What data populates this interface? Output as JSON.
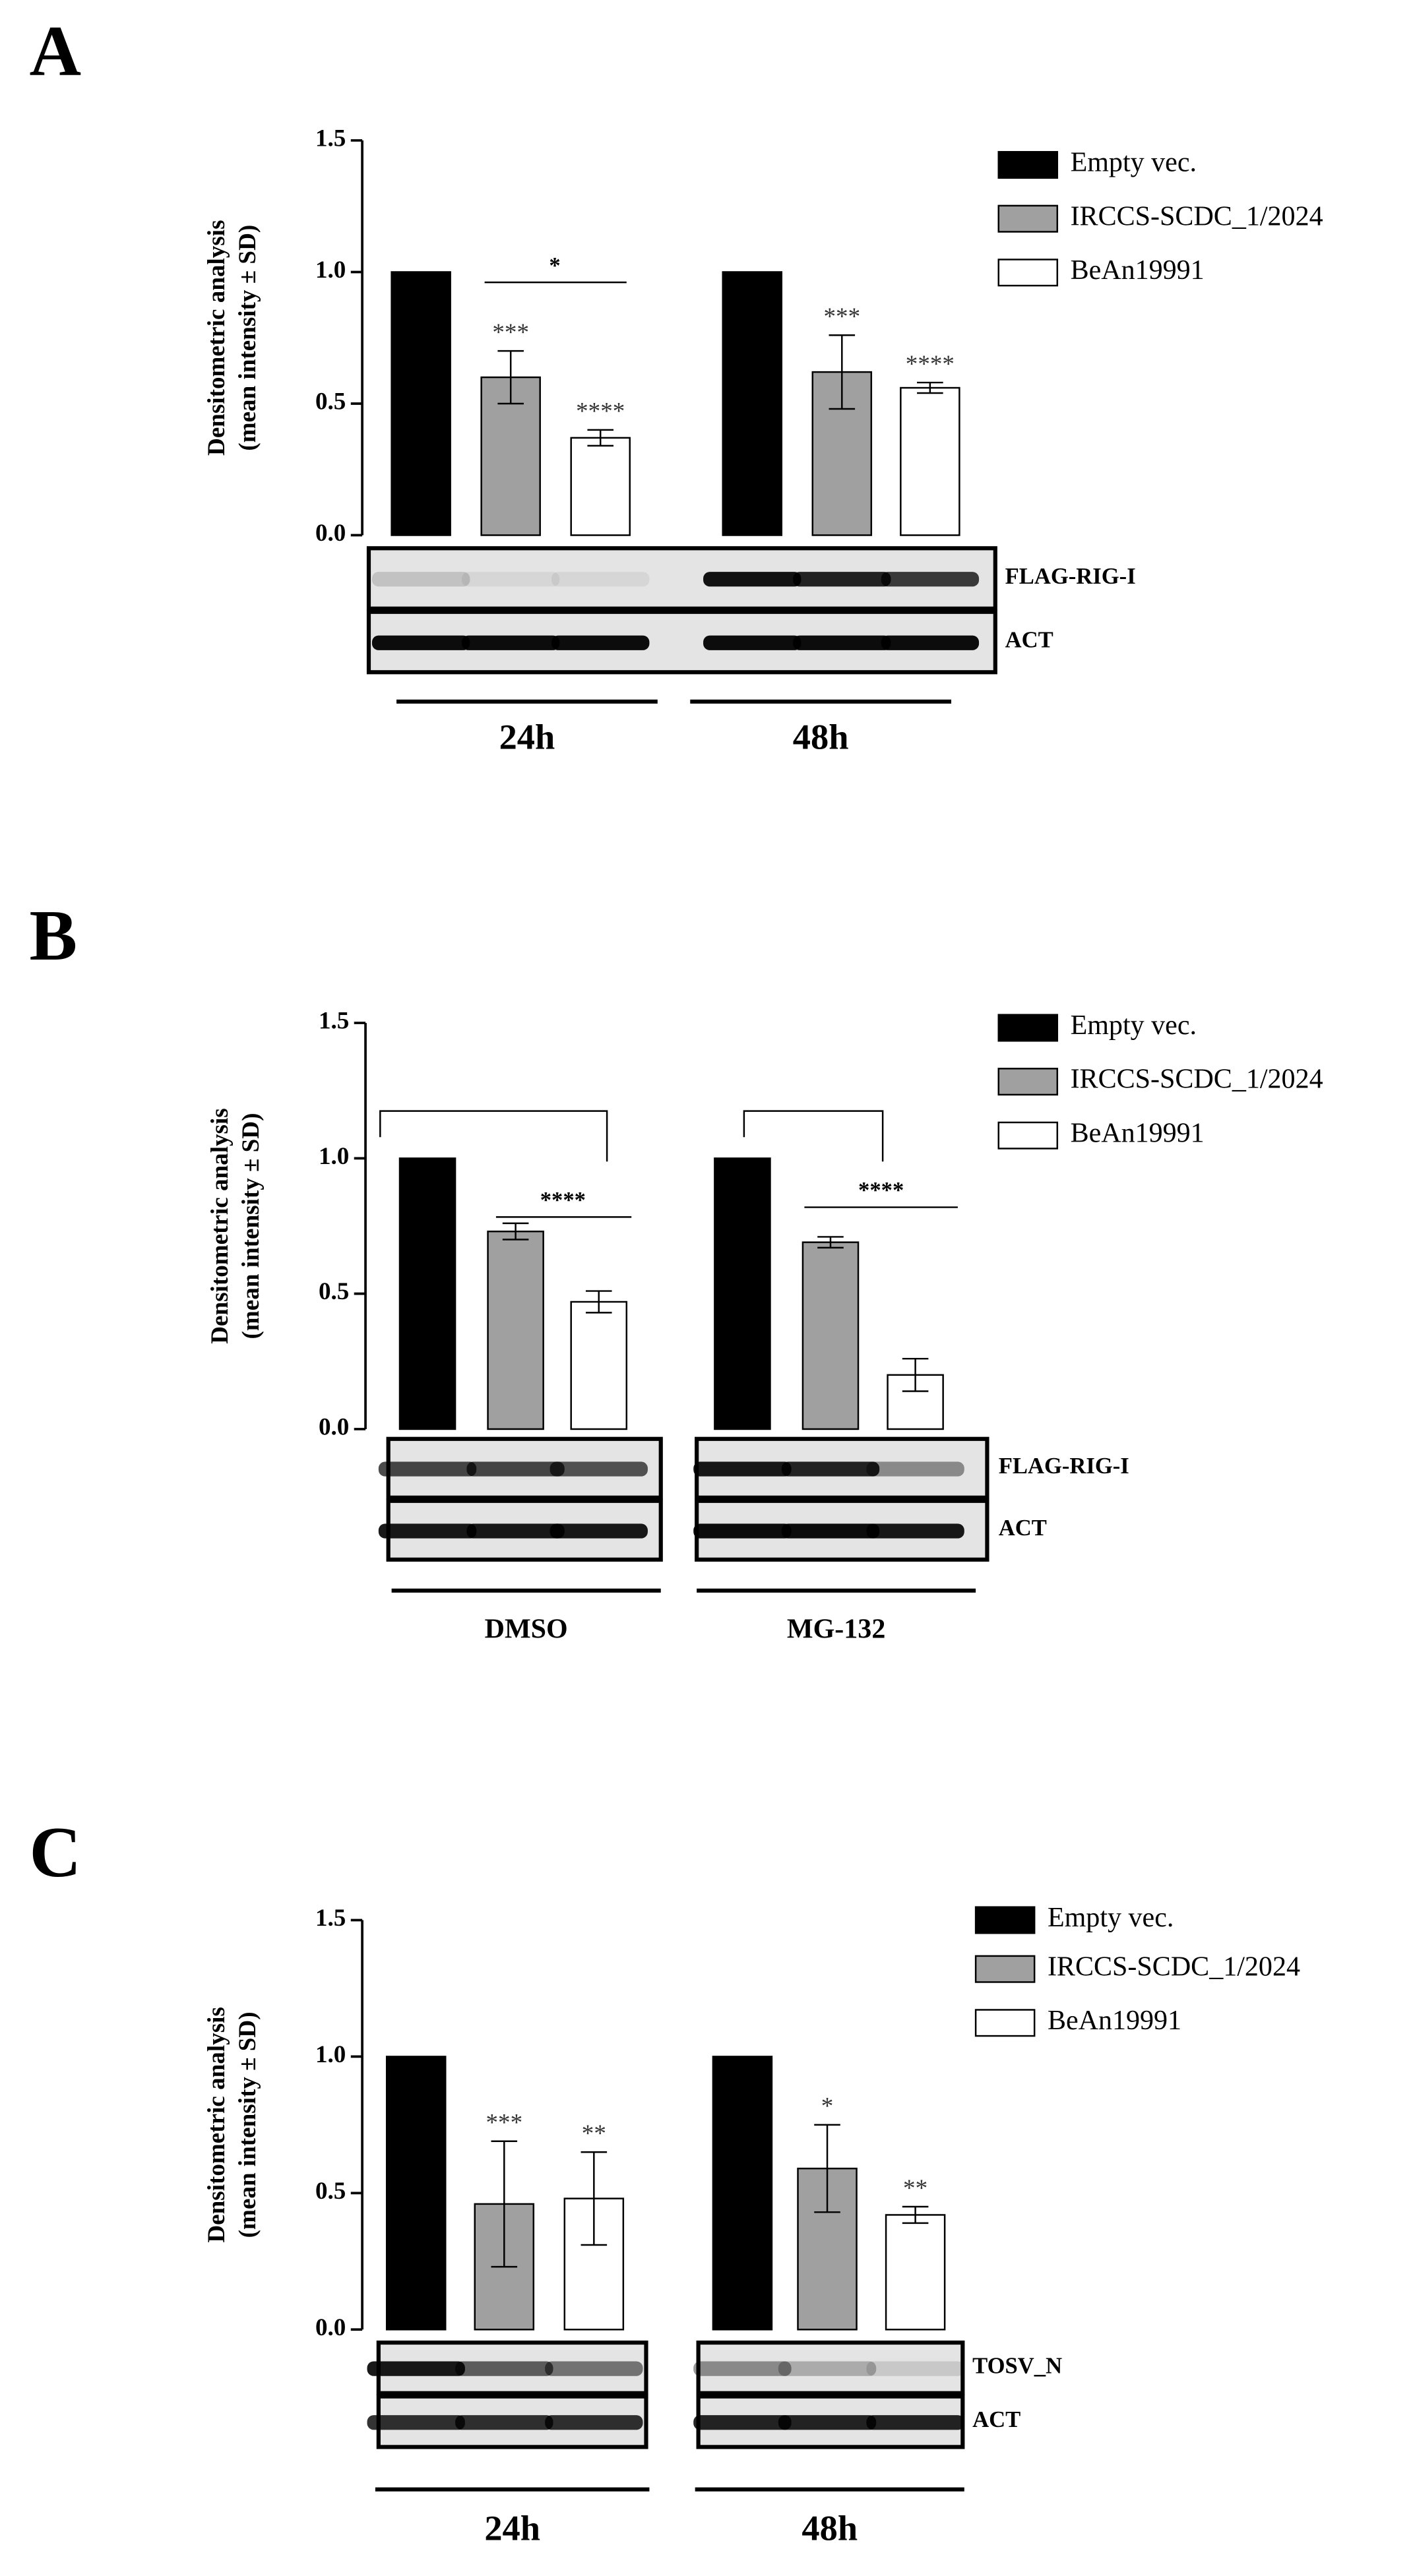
{
  "chart_data": [
    {
      "panel": "A",
      "type": "bar",
      "y_label": [
        "Densitometric analysis",
        "(mean intensity ± SD)"
      ],
      "categories": [
        "24h",
        "48h"
      ],
      "ylim": [
        0,
        1.5
      ],
      "yticks": [
        {
          "value": 0,
          "label": "0.0"
        },
        {
          "value": 0.5,
          "label": "0.5"
        },
        {
          "value": 1,
          "label": "1.0"
        },
        {
          "value": 1.5,
          "label": "1.5"
        }
      ],
      "series": [
        {
          "name": "Empty vec.",
          "color": "#000000",
          "values": [
            1.0,
            1.0
          ]
        },
        {
          "name": "IRCCS-SCDC_1/2024",
          "color": "#a0a0a0",
          "values": [
            0.6,
            0.62
          ],
          "errors": [
            0.1,
            0.14
          ],
          "stars": [
            "***",
            "***"
          ]
        },
        {
          "name": "BeAn19991",
          "color": "#ffffff",
          "values": [
            0.37,
            0.56
          ],
          "errors": [
            0.03,
            0.02
          ],
          "stars": [
            "****",
            "****"
          ]
        }
      ],
      "annotations": [
        "*"
      ],
      "blot_labels": [
        "FLAG-RIG-I",
        "ACT"
      ]
    },
    {
      "panel": "B",
      "type": "bar",
      "y_label": [
        "Densitometric analysis",
        "(mean intensity ± SD)"
      ],
      "categories": [
        "DMSO",
        "MG-132"
      ],
      "ylim": [
        0,
        1.5
      ],
      "yticks": [
        {
          "value": 0,
          "label": "0.0"
        },
        {
          "value": 0.5,
          "label": "0.5"
        },
        {
          "value": 1,
          "label": "1.0"
        },
        {
          "value": 1.5,
          "label": "1.5"
        }
      ],
      "series": [
        {
          "name": "Empty vec.",
          "color": "#000000",
          "values": [
            1.0,
            1.0
          ]
        },
        {
          "name": "IRCCS-SCDC_1/2024",
          "color": "#a0a0a0",
          "values": [
            0.73,
            0.69
          ],
          "errors": [
            0.03,
            0.02
          ]
        },
        {
          "name": "BeAn19991",
          "color": "#ffffff",
          "values": [
            0.47,
            0.2
          ],
          "errors": [
            0.04,
            0.06
          ]
        }
      ],
      "annotations": [
        "****",
        "****"
      ],
      "blot_labels": [
        "FLAG-RIG-I",
        "ACT"
      ]
    },
    {
      "panel": "C",
      "type": "bar",
      "y_label": [
        "Densitometric analysis",
        "(mean intensity ± SD)"
      ],
      "categories": [
        "24h",
        "48h"
      ],
      "ylim": [
        0,
        1.5
      ],
      "yticks": [
        {
          "value": 0,
          "label": "0.0"
        },
        {
          "value": 0.5,
          "label": "0.5"
        },
        {
          "value": 1,
          "label": "1.0"
        },
        {
          "value": 1.5,
          "label": "1.5"
        }
      ],
      "series": [
        {
          "name": "Empty vec.",
          "color": "#000000",
          "values": [
            1.0,
            1.0
          ]
        },
        {
          "name": "IRCCS-SCDC_1/2024",
          "color": "#a0a0a0",
          "values": [
            0.46,
            0.59
          ],
          "errors": [
            0.23,
            0.16
          ],
          "stars": [
            "***",
            "*"
          ]
        },
        {
          "name": "BeAn19991",
          "color": "#ffffff",
          "values": [
            0.48,
            0.42
          ],
          "errors": [
            0.17,
            0.03
          ],
          "stars": [
            "**",
            "**"
          ]
        }
      ],
      "blot_labels": [
        "TOSV_N",
        "ACT"
      ]
    }
  ]
}
